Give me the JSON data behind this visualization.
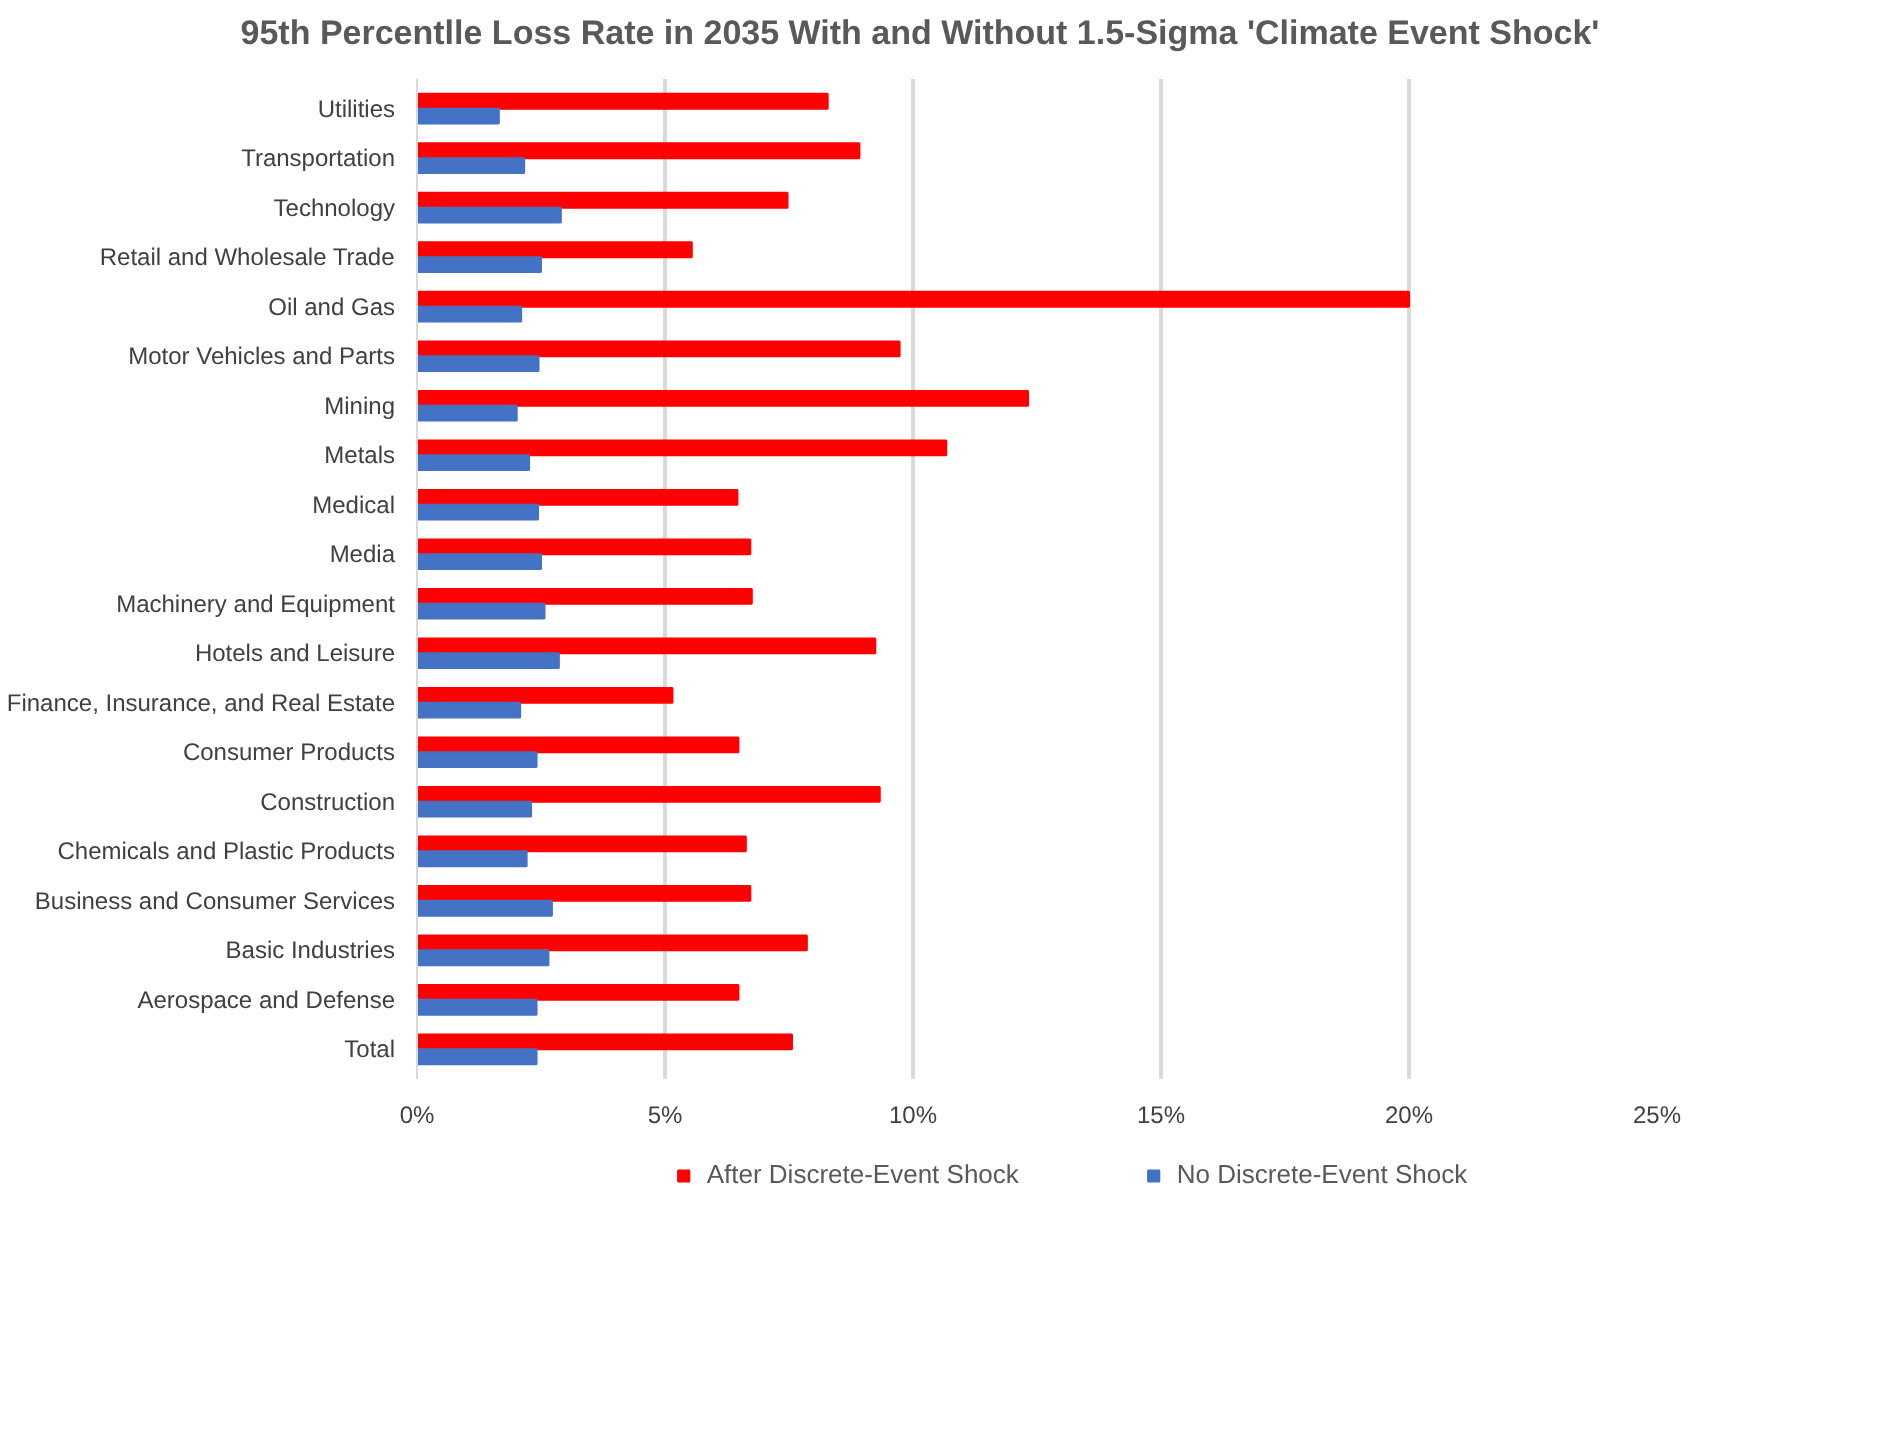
{
  "chart_data": {
    "type": "bar",
    "orientation": "horizontal",
    "title": "95th Percentlle Loss Rate in 2035 With and Without 1.5-Sigma 'Climate Event Shock'",
    "categories": [
      "Utilities",
      "Transportation",
      "Technology",
      "Retail and Wholesale Trade",
      "Oil and Gas",
      "Motor Vehicles and Parts",
      "Mining",
      "Metals",
      "Medical",
      "Media",
      "Machinery and Equipment",
      "Hotels and Leisure",
      "Finance, Insurance, and Real Estate",
      "Consumer Products",
      "Construction",
      "Chemicals and Plastic Products",
      "Business and Consumer Services",
      "Basic Industries",
      "Aerospace and Defense",
      "Total"
    ],
    "series": [
      {
        "name": "After Discrete-Event Shock",
        "color": "#ff0000",
        "values": [
          8.28,
          8.92,
          7.47,
          5.54,
          20.0,
          9.73,
          12.32,
          10.67,
          6.46,
          6.72,
          6.75,
          9.24,
          5.15,
          6.48,
          9.33,
          6.63,
          6.72,
          7.86,
          6.48,
          7.56
        ]
      },
      {
        "name": "No Discrete-Event Shock",
        "color": "#4472c4",
        "values": [
          1.65,
          2.16,
          2.9,
          2.5,
          2.1,
          2.45,
          2.01,
          2.26,
          2.44,
          2.5,
          2.57,
          2.86,
          2.08,
          2.41,
          2.3,
          2.21,
          2.72,
          2.65,
          2.41,
          2.41
        ]
      }
    ],
    "xlim": [
      0,
      25
    ],
    "xticks": [
      {
        "value": 0,
        "label": "0%"
      },
      {
        "value": 5,
        "label": "5%"
      },
      {
        "value": 10,
        "label": "10%"
      },
      {
        "value": 15,
        "label": "15%"
      },
      {
        "value": 20,
        "label": "20%"
      },
      {
        "value": 25,
        "label": "25%"
      }
    ],
    "grid": "x",
    "legend": "bottom"
  }
}
